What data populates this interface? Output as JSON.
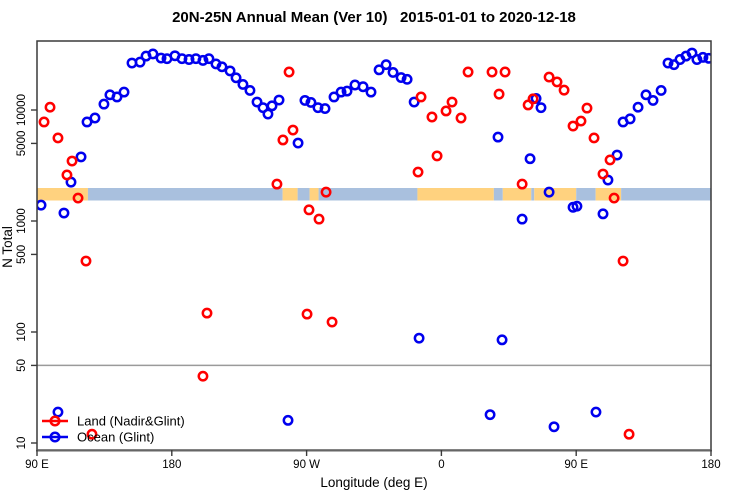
{
  "title": "20N-25N Annual Mean (Ver 10)   2015-01-01 to 2020-12-18",
  "colors": {
    "land_series": "#ff0000",
    "ocean_series": "#0000ee",
    "band_land": "#ffd27f",
    "band_ocean": "#a9c0de",
    "reference_line": "#9a9a9a",
    "frame": "#3a3a3a"
  },
  "chart_data": {
    "type": "scatter",
    "title": "20N-25N Annual Mean (Ver 10)   2015-01-01 to 2020-12-18",
    "xlabel": "Longitude (deg E)",
    "ylabel": "N Total",
    "x_scale": "linear",
    "y_scale": "log",
    "xlim": [
      90,
      540
    ],
    "ylim": [
      10,
      40000
    ],
    "grid": false,
    "x_ticks": [
      {
        "lon": 90,
        "label": "90 E"
      },
      {
        "lon": 180,
        "label": "180"
      },
      {
        "lon": 270,
        "label": "90 W"
      },
      {
        "lon": 360,
        "label": "0"
      },
      {
        "lon": 450,
        "label": "90 E"
      },
      {
        "lon": 540,
        "label": "180"
      }
    ],
    "y_ticks": [
      {
        "value": 10,
        "label": "10"
      },
      {
        "value": 50,
        "label": "50"
      },
      {
        "value": 100,
        "label": "100"
      },
      {
        "value": 500,
        "label": "500"
      },
      {
        "value": 1000,
        "label": "1000"
      },
      {
        "value": 5000,
        "label": "5000"
      },
      {
        "value": 10000,
        "label": "10000"
      }
    ],
    "reference_line_value": 50,
    "legend": {
      "position": "bottom-left",
      "items": [
        {
          "label": "Land (Nadir&Glint)",
          "color": "#ff0000"
        },
        {
          "label": "Ocean (Glint)",
          "color": "#0000ee"
        }
      ]
    },
    "surface_band": {
      "description": "land/ocean strip across 20N-25N drawn near N=1800",
      "land_color": "#ffd27f",
      "ocean_color": "#a9c0de",
      "segments": [
        {
          "from": 90,
          "to": 124,
          "surface": "land"
        },
        {
          "from": 124,
          "to": 254,
          "surface": "ocean"
        },
        {
          "from": 254,
          "to": 264,
          "surface": "land"
        },
        {
          "from": 264,
          "to": 272,
          "surface": "ocean"
        },
        {
          "from": 272,
          "to": 278,
          "surface": "land"
        },
        {
          "from": 278,
          "to": 344,
          "surface": "ocean"
        },
        {
          "from": 344,
          "to": 395,
          "surface": "land"
        },
        {
          "from": 395,
          "to": 401,
          "surface": "ocean"
        },
        {
          "from": 401,
          "to": 420,
          "surface": "land"
        },
        {
          "from": 420,
          "to": 422,
          "surface": "ocean"
        },
        {
          "from": 422,
          "to": 450,
          "surface": "land"
        },
        {
          "from": 450,
          "to": 463,
          "surface": "ocean"
        },
        {
          "from": 463,
          "to": 480,
          "surface": "land"
        },
        {
          "from": 480,
          "to": 540,
          "surface": "ocean"
        }
      ]
    },
    "series": [
      {
        "name": "Land (Nadir&Glint)",
        "color": "#ff0000",
        "points": [
          [
            98.7,
            10600
          ],
          [
            94.7,
            7800
          ],
          [
            104.0,
            5600
          ],
          [
            113.4,
            3470
          ],
          [
            110.0,
            2600
          ],
          [
            117.4,
            1610
          ],
          [
            122.7,
            436
          ],
          [
            126.7,
            12
          ],
          [
            200.8,
            40
          ],
          [
            203.5,
            148
          ],
          [
            250.2,
            2150
          ],
          [
            254.2,
            5370
          ],
          [
            260.9,
            6600
          ],
          [
            258.3,
            22000
          ],
          [
            283.0,
            1820
          ],
          [
            271.6,
            1260
          ],
          [
            278.3,
            1040
          ],
          [
            270.3,
            145
          ],
          [
            287.0,
            123
          ],
          [
            344.4,
            2760
          ],
          [
            346.4,
            13100
          ],
          [
            353.7,
            8650
          ],
          [
            363.1,
            9800
          ],
          [
            367.1,
            11800
          ],
          [
            373.1,
            8470
          ],
          [
            377.8,
            22000
          ],
          [
            357.1,
            3860
          ],
          [
            393.8,
            22000
          ],
          [
            402.5,
            22000
          ],
          [
            398.5,
            13900
          ],
          [
            413.9,
            2150
          ],
          [
            417.9,
            11100
          ],
          [
            421.2,
            12600
          ],
          [
            431.9,
            19800
          ],
          [
            437.2,
            17900
          ],
          [
            441.9,
            15100
          ],
          [
            447.9,
            7170
          ],
          [
            453.2,
            7950
          ],
          [
            457.2,
            10400
          ],
          [
            461.9,
            5600
          ],
          [
            472.6,
            3550
          ],
          [
            467.9,
            2650
          ],
          [
            475.3,
            1610
          ],
          [
            481.3,
            436
          ],
          [
            485.3,
            12
          ]
        ]
      },
      {
        "name": "Ocean (Glint)",
        "color": "#0000ee",
        "points": [
          [
            92.7,
            1390
          ],
          [
            108.0,
            1180
          ],
          [
            112.7,
            2240
          ],
          [
            119.4,
            3780
          ],
          [
            123.4,
            7800
          ],
          [
            128.7,
            8470
          ],
          [
            134.7,
            11300
          ],
          [
            138.7,
            13700
          ],
          [
            143.4,
            13100
          ],
          [
            148.1,
            14500
          ],
          [
            153.4,
            26500
          ],
          [
            158.8,
            27000
          ],
          [
            162.8,
            30600
          ],
          [
            167.4,
            32000
          ],
          [
            172.8,
            29400
          ],
          [
            176.8,
            29000
          ],
          [
            182.1,
            30800
          ],
          [
            186.8,
            29000
          ],
          [
            191.5,
            28500
          ],
          [
            196.1,
            29000
          ],
          [
            200.8,
            28000
          ],
          [
            204.8,
            29000
          ],
          [
            209.5,
            26000
          ],
          [
            213.5,
            24500
          ],
          [
            218.9,
            22500
          ],
          [
            222.9,
            19500
          ],
          [
            227.5,
            17000
          ],
          [
            232.2,
            15000
          ],
          [
            236.9,
            11800
          ],
          [
            240.9,
            10500
          ],
          [
            244.2,
            9200
          ],
          [
            246.9,
            10900
          ],
          [
            251.6,
            12300
          ],
          [
            264.3,
            5040
          ],
          [
            268.9,
            12200
          ],
          [
            272.9,
            11700
          ],
          [
            277.6,
            10500
          ],
          [
            282.3,
            10300
          ],
          [
            288.3,
            13100
          ],
          [
            293.0,
            14500
          ],
          [
            297.0,
            14800
          ],
          [
            302.3,
            16800
          ],
          [
            307.7,
            16200
          ],
          [
            313.0,
            14500
          ],
          [
            318.4,
            23000
          ],
          [
            323.1,
            25600
          ],
          [
            327.7,
            21800
          ],
          [
            333.1,
            19600
          ],
          [
            337.1,
            18900
          ],
          [
            341.8,
            11800
          ],
          [
            345.1,
            88
          ],
          [
            400.5,
            85
          ],
          [
            257.6,
            16
          ],
          [
            392.5,
            18
          ],
          [
            435.2,
            14
          ],
          [
            463.2,
            19
          ],
          [
            104.0,
            19
          ],
          [
            397.8,
            5700
          ],
          [
            423.2,
            12700
          ],
          [
            426.5,
            10500
          ],
          [
            419.2,
            3640
          ],
          [
            431.9,
            1820
          ],
          [
            413.9,
            1040
          ],
          [
            447.9,
            1330
          ],
          [
            450.5,
            1360
          ],
          [
            467.9,
            1160
          ],
          [
            471.2,
            2340
          ],
          [
            477.3,
            3930
          ],
          [
            481.3,
            7800
          ],
          [
            486.0,
            8320
          ],
          [
            491.3,
            10600
          ],
          [
            496.6,
            13700
          ],
          [
            501.3,
            12200
          ],
          [
            506.7,
            15000
          ],
          [
            511.3,
            26500
          ],
          [
            515.3,
            25600
          ],
          [
            519.3,
            28500
          ],
          [
            523.3,
            30600
          ],
          [
            527.3,
            32600
          ],
          [
            530.6,
            28500
          ],
          [
            534.6,
            29800
          ],
          [
            538.6,
            29200
          ]
        ]
      }
    ]
  }
}
